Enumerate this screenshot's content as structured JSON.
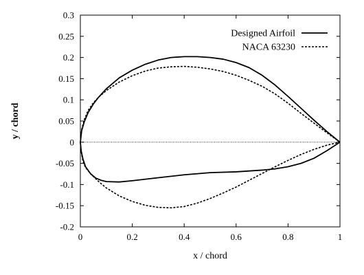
{
  "chart_data": {
    "type": "line",
    "title": "",
    "xlabel": "x / chord",
    "ylabel": "y / chord",
    "xlim": [
      0,
      1
    ],
    "ylim": [
      -0.2,
      0.3
    ],
    "x_ticks": [
      "0",
      "0.2",
      "0.4",
      "0.6",
      "0.8",
      "1"
    ],
    "y_ticks": [
      "0.3",
      "0.25",
      "0.2",
      "0.15",
      "0.1",
      "0.05",
      "0",
      "-0.05",
      "-0.1",
      "-0.15",
      "-0.2"
    ],
    "grid": false,
    "legend_position": "top-right",
    "reference_line": {
      "y": 0,
      "style": "dotted"
    },
    "series": [
      {
        "name": "Designed Airfoil",
        "style": "solid",
        "color": "#000000",
        "points": [
          [
            1.0,
            0.0
          ],
          [
            0.95,
            0.025
          ],
          [
            0.9,
            0.052
          ],
          [
            0.85,
            0.08
          ],
          [
            0.8,
            0.108
          ],
          [
            0.75,
            0.135
          ],
          [
            0.7,
            0.158
          ],
          [
            0.65,
            0.176
          ],
          [
            0.6,
            0.188
          ],
          [
            0.55,
            0.196
          ],
          [
            0.5,
            0.2
          ],
          [
            0.45,
            0.202
          ],
          [
            0.4,
            0.202
          ],
          [
            0.35,
            0.2
          ],
          [
            0.3,
            0.194
          ],
          [
            0.25,
            0.184
          ],
          [
            0.2,
            0.17
          ],
          [
            0.15,
            0.152
          ],
          [
            0.1,
            0.126
          ],
          [
            0.07,
            0.106
          ],
          [
            0.05,
            0.09
          ],
          [
            0.03,
            0.07
          ],
          [
            0.015,
            0.048
          ],
          [
            0.005,
            0.027
          ],
          [
            0.0,
            0.0
          ],
          [
            0.003,
            -0.02
          ],
          [
            0.01,
            -0.04
          ],
          [
            0.02,
            -0.058
          ],
          [
            0.04,
            -0.075
          ],
          [
            0.06,
            -0.085
          ],
          [
            0.08,
            -0.09
          ],
          [
            0.1,
            -0.093
          ],
          [
            0.15,
            -0.094
          ],
          [
            0.2,
            -0.091
          ],
          [
            0.3,
            -0.084
          ],
          [
            0.4,
            -0.077
          ],
          [
            0.5,
            -0.072
          ],
          [
            0.6,
            -0.07
          ],
          [
            0.7,
            -0.066
          ],
          [
            0.75,
            -0.063
          ],
          [
            0.8,
            -0.058
          ],
          [
            0.85,
            -0.05
          ],
          [
            0.9,
            -0.038
          ],
          [
            0.95,
            -0.02
          ],
          [
            1.0,
            0.0
          ]
        ]
      },
      {
        "name": "NACA 63230",
        "style": "dashed",
        "color": "#000000",
        "points": [
          [
            1.0,
            0.0
          ],
          [
            0.95,
            0.022
          ],
          [
            0.9,
            0.045
          ],
          [
            0.85,
            0.068
          ],
          [
            0.8,
            0.092
          ],
          [
            0.75,
            0.114
          ],
          [
            0.7,
            0.132
          ],
          [
            0.65,
            0.146
          ],
          [
            0.6,
            0.158
          ],
          [
            0.55,
            0.167
          ],
          [
            0.5,
            0.173
          ],
          [
            0.45,
            0.177
          ],
          [
            0.4,
            0.179
          ],
          [
            0.35,
            0.178
          ],
          [
            0.3,
            0.175
          ],
          [
            0.25,
            0.168
          ],
          [
            0.2,
            0.157
          ],
          [
            0.15,
            0.142
          ],
          [
            0.1,
            0.122
          ],
          [
            0.07,
            0.106
          ],
          [
            0.05,
            0.093
          ],
          [
            0.03,
            0.075
          ],
          [
            0.015,
            0.053
          ],
          [
            0.005,
            0.03
          ],
          [
            0.0,
            0.0
          ],
          [
            0.003,
            -0.022
          ],
          [
            0.01,
            -0.045
          ],
          [
            0.02,
            -0.06
          ],
          [
            0.04,
            -0.075
          ],
          [
            0.06,
            -0.087
          ],
          [
            0.08,
            -0.098
          ],
          [
            0.1,
            -0.108
          ],
          [
            0.15,
            -0.127
          ],
          [
            0.2,
            -0.14
          ],
          [
            0.25,
            -0.149
          ],
          [
            0.3,
            -0.154
          ],
          [
            0.35,
            -0.155
          ],
          [
            0.4,
            -0.152
          ],
          [
            0.45,
            -0.144
          ],
          [
            0.5,
            -0.133
          ],
          [
            0.55,
            -0.12
          ],
          [
            0.6,
            -0.106
          ],
          [
            0.65,
            -0.09
          ],
          [
            0.7,
            -0.074
          ],
          [
            0.75,
            -0.058
          ],
          [
            0.8,
            -0.043
          ],
          [
            0.85,
            -0.029
          ],
          [
            0.9,
            -0.017
          ],
          [
            0.95,
            -0.007
          ],
          [
            1.0,
            0.0
          ]
        ]
      }
    ]
  }
}
